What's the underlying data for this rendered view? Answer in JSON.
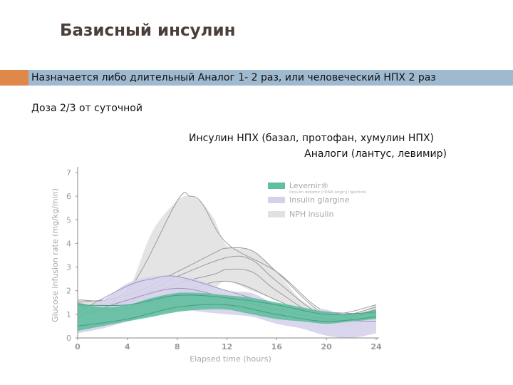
{
  "slide": {
    "title": "Базисный инсулин",
    "bullet1": "Назначается либо длительный Аналог 1- 2 раз, или человеческий НПХ 2 раз",
    "bullet2": "Доза 2/3 от суточной",
    "caption_line1": "Инсулин НПХ (базал, протофан, хумулин НПХ)",
    "caption_line2": "Аналоги (лантус, левимир)",
    "accent_color": "#e0874a",
    "band_color": "#9fb9cf"
  },
  "chart_data": {
    "type": "area",
    "xlabel": "Elapsed time (hours)",
    "ylabel": "Glucose infusion rate (mg/kg/min)",
    "xlim": [
      0,
      24
    ],
    "ylim": [
      0,
      7
    ],
    "xticks": [
      "0",
      "4",
      "8",
      "12",
      "16",
      "20",
      "24"
    ],
    "yticks": [
      "0",
      "1",
      "2",
      "3",
      "4",
      "5",
      "6",
      "7"
    ],
    "grid": false,
    "legend_position": "top-right",
    "series": [
      {
        "name": "NPH insulin",
        "color": "#e1e1e1",
        "line_color": "#9a9a9a",
        "x": [
          0,
          2,
          4,
          6,
          8,
          9,
          10,
          11,
          12,
          14,
          16,
          18,
          20,
          22,
          24
        ],
        "upper": [
          1.6,
          1.6,
          2.0,
          4.5,
          5.8,
          6.0,
          5.7,
          5.0,
          3.9,
          3.7,
          2.8,
          1.6,
          1.1,
          1.0,
          1.4
        ],
        "lower": [
          1.0,
          1.0,
          1.2,
          1.4,
          1.7,
          1.8,
          1.9,
          2.1,
          2.4,
          2.0,
          1.6,
          1.2,
          0.8,
          0.5,
          0.9
        ],
        "curves": [
          {
            "x": [
              0,
              4,
              8,
              9,
              10,
              12,
              16,
              20,
              24
            ],
            "y": [
              1.6,
              2.0,
              5.8,
              6.0,
              5.7,
              4.0,
              2.8,
              1.1,
              1.4
            ]
          },
          {
            "x": [
              0,
              4,
              8,
              11,
              12,
              14,
              16,
              20,
              24
            ],
            "y": [
              1.5,
              1.8,
              2.8,
              3.6,
              3.8,
              3.7,
              2.8,
              1.0,
              1.3
            ]
          },
          {
            "x": [
              0,
              4,
              8,
              12,
              14,
              16,
              20,
              24
            ],
            "y": [
              1.3,
              1.6,
              2.6,
              3.4,
              3.3,
              2.4,
              0.9,
              1.2
            ]
          },
          {
            "x": [
              0,
              4,
              8,
              11,
              12,
              14,
              16,
              20,
              24
            ],
            "y": [
              1.2,
              1.5,
              2.3,
              2.7,
              2.9,
              2.8,
              2.0,
              0.8,
              1.1
            ]
          },
          {
            "x": [
              0,
              4,
              8,
              12,
              16,
              20,
              24
            ],
            "y": [
              1.0,
              1.3,
              1.9,
              2.4,
              1.6,
              0.7,
              0.9
            ]
          }
        ]
      },
      {
        "name": "Insulin glargine",
        "color": "#d6d1eb",
        "line_color": "#9a96b8",
        "x": [
          0,
          2,
          4,
          6,
          8,
          10,
          12,
          14,
          16,
          18,
          20,
          22,
          24
        ],
        "upper": [
          1.2,
          1.6,
          2.3,
          2.6,
          2.6,
          2.4,
          2.0,
          1.9,
          1.4,
          1.2,
          1.2,
          0.8,
          1.0
        ],
        "lower": [
          0.2,
          0.4,
          0.7,
          1.0,
          1.2,
          1.1,
          1.0,
          0.9,
          0.6,
          0.4,
          0.1,
          0.0,
          0.2
        ],
        "curves": [
          {
            "x": [
              0,
              4,
              6,
              8,
              12,
              16,
              20,
              24
            ],
            "y": [
              1.1,
              2.2,
              2.5,
              2.6,
              2.0,
              1.4,
              1.1,
              1.0
            ]
          },
          {
            "x": [
              0,
              4,
              8,
              12,
              16,
              20,
              24
            ],
            "y": [
              0.9,
              1.6,
              2.1,
              1.7,
              1.2,
              0.8,
              0.7
            ]
          }
        ]
      },
      {
        "name": "Levemir®",
        "subtitle": "(insulin detemir [rDNA origin] injection)",
        "color": "#5fbf9e",
        "line_color": "#4a9c80",
        "x": [
          0,
          2,
          4,
          6,
          8,
          10,
          12,
          14,
          16,
          18,
          20,
          22,
          24
        ],
        "upper": [
          1.5,
          1.3,
          1.4,
          1.7,
          1.9,
          1.9,
          1.8,
          1.7,
          1.5,
          1.3,
          1.1,
          1.0,
          1.2
        ],
        "lower": [
          0.3,
          0.5,
          0.7,
          0.9,
          1.1,
          1.2,
          1.2,
          1.0,
          0.8,
          0.7,
          0.6,
          0.7,
          0.8
        ],
        "curves": [
          {
            "x": [
              0,
              4,
              8,
              12,
              16,
              20,
              24
            ],
            "y": [
              1.4,
              1.4,
              1.8,
              1.7,
              1.4,
              1.0,
              1.1
            ]
          },
          {
            "x": [
              0,
              4,
              8,
              12,
              16,
              20,
              24
            ],
            "y": [
              0.5,
              0.8,
              1.3,
              1.4,
              1.0,
              0.7,
              0.9
            ]
          }
        ]
      }
    ]
  }
}
